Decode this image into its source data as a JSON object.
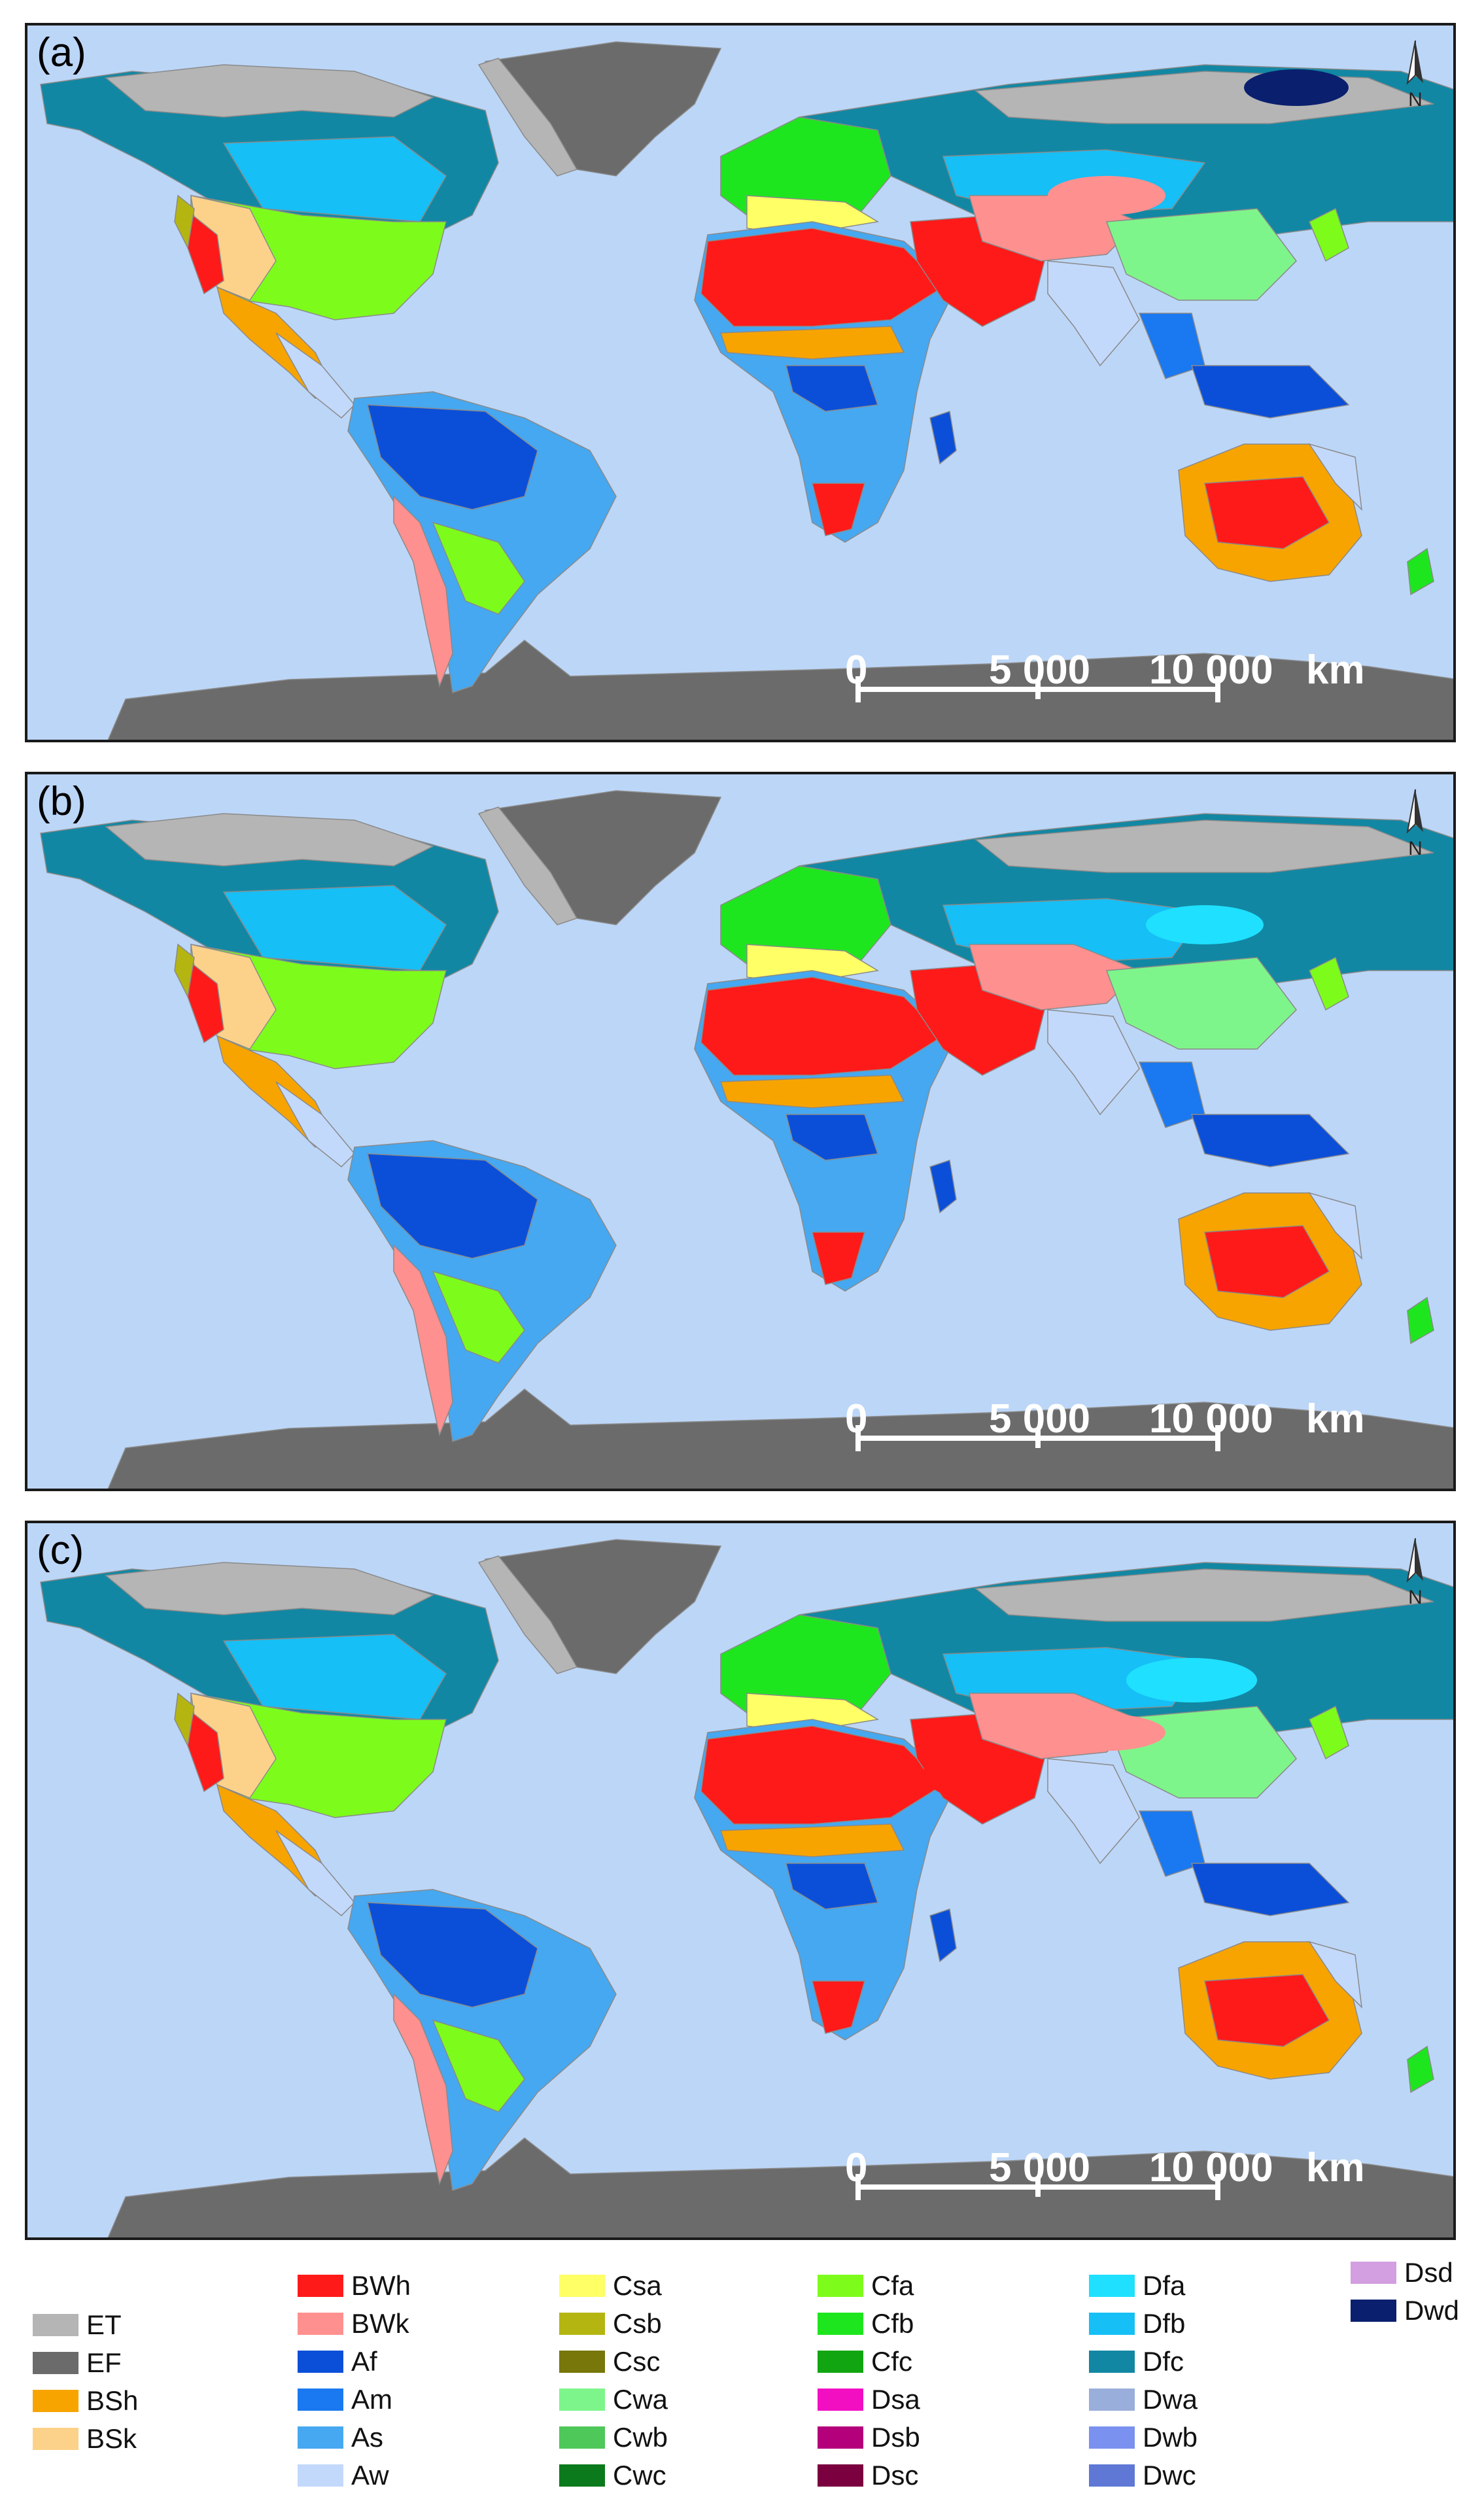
{
  "panels": [
    {
      "label": "(a)",
      "north_letter": "N"
    },
    {
      "label": "(b)",
      "north_letter": "N"
    },
    {
      "label": "(c)",
      "north_letter": "N"
    }
  ],
  "scale": {
    "zero": "0",
    "mid": "5 000",
    "end": "10 000",
    "unit": "km"
  },
  "legend": {
    "columns": [
      [
        {
          "code": "ET",
          "color": "#b5b5b5"
        },
        {
          "code": "EF",
          "color": "#6b6b6b"
        },
        {
          "code": "BSh",
          "color": "#f7a400"
        },
        {
          "code": "BSk",
          "color": "#fcd28a"
        }
      ],
      [
        {
          "code": "BWh",
          "color": "#ff1a1a"
        },
        {
          "code": "BWk",
          "color": "#ff9090"
        },
        {
          "code": "Af",
          "color": "#0b4fd9"
        },
        {
          "code": "Am",
          "color": "#1a78f0"
        },
        {
          "code": "As",
          "color": "#46a8f0"
        },
        {
          "code": "Aw",
          "color": "#c3d9fb"
        }
      ],
      [
        {
          "code": "Csa",
          "color": "#ffff66"
        },
        {
          "code": "Csb",
          "color": "#b5b512"
        },
        {
          "code": "Csc",
          "color": "#77770a"
        },
        {
          "code": "Cwa",
          "color": "#7ef58a"
        },
        {
          "code": "Cwb",
          "color": "#4fc85a"
        },
        {
          "code": "Cwc",
          "color": "#0b7a1c"
        }
      ],
      [
        {
          "code": "Cfa",
          "color": "#7dfc1c"
        },
        {
          "code": "Cfb",
          "color": "#1ee61e"
        },
        {
          "code": "Cfc",
          "color": "#11a611"
        },
        {
          "code": "Dsa",
          "color": "#f20fc2"
        },
        {
          "code": "Dsb",
          "color": "#b4007a"
        },
        {
          "code": "Dsc",
          "color": "#7a0040"
        }
      ],
      [
        {
          "code": "Dfa",
          "color": "#1fe0ff"
        },
        {
          "code": "Dfb",
          "color": "#16bff5"
        },
        {
          "code": "Dfc",
          "color": "#1287a3"
        },
        {
          "code": "Dwa",
          "color": "#9aaedb"
        },
        {
          "code": "Dwb",
          "color": "#7b91f0"
        },
        {
          "code": "Dwc",
          "color": "#5f78d6"
        }
      ],
      [
        {
          "code": "Dsd",
          "color": "#d39fe0"
        },
        {
          "code": "Dwd",
          "color": "#0a1f6e"
        }
      ]
    ]
  },
  "colors": {
    "ocean": "#bcd6f7",
    "frame": "#1a1a1a"
  }
}
